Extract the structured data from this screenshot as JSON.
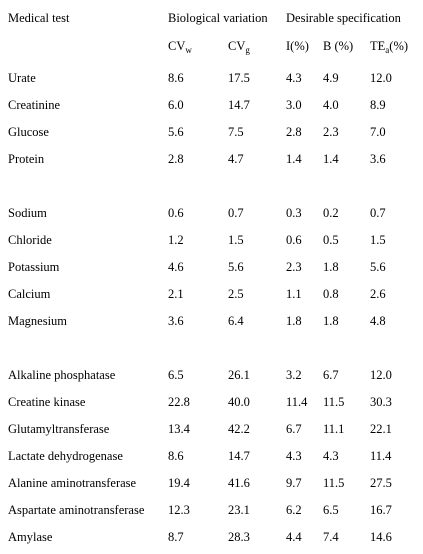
{
  "header": {
    "medical_test": "Medical test",
    "biological_variation": "Biological variation",
    "desirable_specification": "Desirable specification"
  },
  "columns": [
    {
      "base": "CV",
      "sub": "w"
    },
    {
      "base": "CV",
      "sub": "g"
    },
    {
      "base": "I(%)"
    },
    {
      "base": "B (%)"
    },
    {
      "base": "TE",
      "sub": "a",
      "suffix": "(%)"
    }
  ],
  "groups": [
    {
      "rows": [
        [
          "Urate",
          "8.6",
          "17.5",
          "4.3",
          "4.9",
          "12.0"
        ],
        [
          "Creatinine",
          "6.0",
          "14.7",
          "3.0",
          "4.0",
          "8.9"
        ],
        [
          "Glucose",
          "5.6",
          "7.5",
          "2.8",
          "2.3",
          "7.0"
        ],
        [
          "Protein",
          "2.8",
          "4.7",
          "1.4",
          "1.4",
          "3.6"
        ]
      ]
    },
    {
      "rows": [
        [
          "Sodium",
          "0.6",
          "0.7",
          "0.3",
          "0.2",
          "0.7"
        ],
        [
          "Chloride",
          "1.2",
          "1.5",
          "0.6",
          "0.5",
          "1.5"
        ],
        [
          "Potassium",
          "4.6",
          "5.6",
          "2.3",
          "1.8",
          "5.6"
        ],
        [
          "Calcium",
          "2.1",
          "2.5",
          "1.1",
          "0.8",
          "2.6"
        ],
        [
          "Magnesium",
          "3.6",
          "6.4",
          "1.8",
          "1.8",
          "4.8"
        ]
      ]
    },
    {
      "rows": [
        [
          "Alkaline phosphatase",
          "6.5",
          "26.1",
          "3.2",
          "6.7",
          "12.0"
        ],
        [
          "Creatine kinase",
          "22.8",
          "40.0",
          "11.4",
          "11.5",
          "30.3"
        ],
        [
          "Glutamyltransferase",
          "13.4",
          "42.2",
          "6.7",
          "11.1",
          "22.1"
        ],
        [
          "Lactate dehydrogenase",
          "8.6",
          "14.7",
          "4.3",
          "4.3",
          "11.4"
        ],
        [
          "Alanine aminotransferase",
          "19.4",
          "41.6",
          "9.7",
          "11.5",
          "27.5"
        ],
        [
          "Aspartate aminotransferase",
          "12.3",
          "23.1",
          "6.2",
          "6.5",
          "16.7"
        ],
        [
          "Amylase",
          "8.7",
          "28.3",
          "4.4",
          "7.4",
          "14.6"
        ]
      ]
    }
  ]
}
